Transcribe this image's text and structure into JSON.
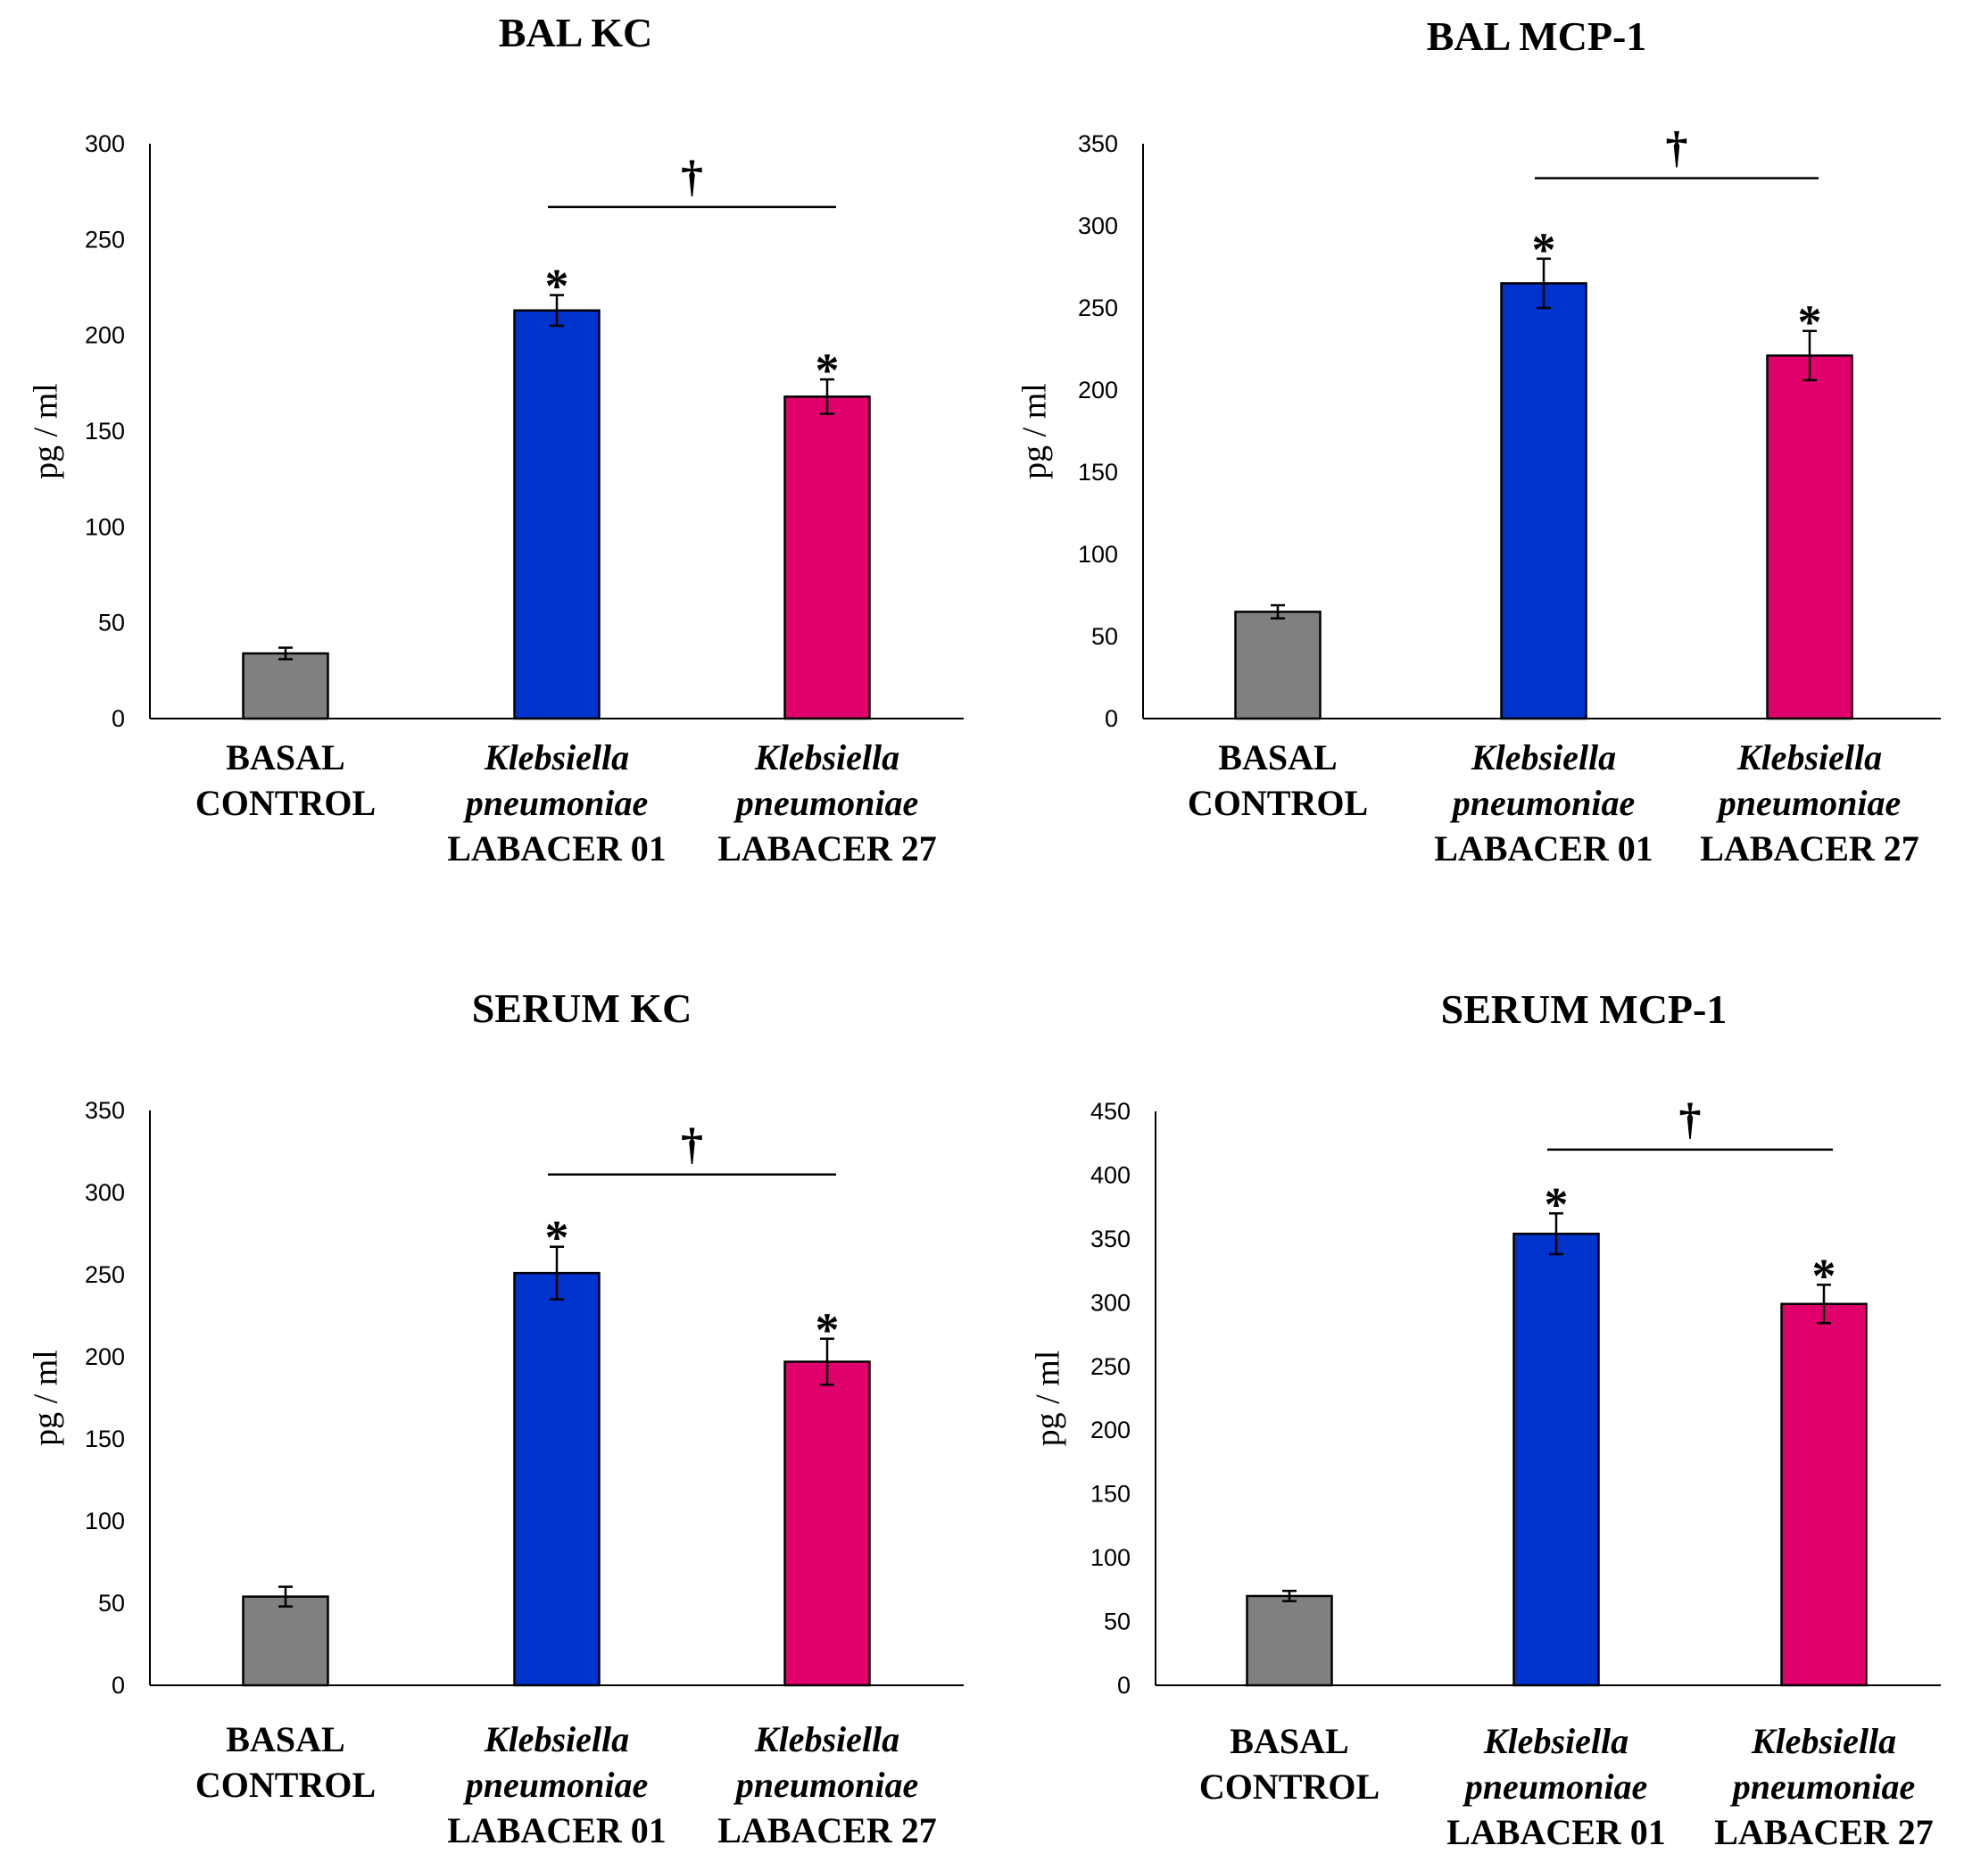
{
  "chart_data": [
    {
      "type": "bar",
      "title": "BAL KC",
      "ylabel": "pg / ml",
      "ylim": [
        0,
        300
      ],
      "yticks": [
        0,
        50,
        100,
        150,
        200,
        250,
        300
      ],
      "categories": [
        [
          "BASAL",
          "CONTROL"
        ],
        [
          "Klebsiella",
          "pneumoniae",
          "LABACER 01"
        ],
        [
          "Klebsiella",
          "pneumoniae",
          "LABACER 27"
        ]
      ],
      "values": [
        34,
        213,
        168
      ],
      "errors": [
        3,
        8,
        9
      ],
      "colors": [
        "#808080",
        "#0033CC",
        "#E0006B"
      ],
      "stars": [
        "",
        "*",
        "*"
      ],
      "dagger": "†",
      "bracket_level": 267
    },
    {
      "type": "bar",
      "title": "BAL MCP-1",
      "ylabel": "pg / ml",
      "ylim": [
        0,
        350
      ],
      "yticks": [
        0,
        50,
        100,
        150,
        200,
        250,
        300,
        350
      ],
      "categories": [
        [
          "BASAL",
          "CONTROL"
        ],
        [
          "Klebsiella",
          "pneumoniae",
          "LABACER 01"
        ],
        [
          "Klebsiella",
          "pneumoniae",
          "LABACER 27"
        ]
      ],
      "values": [
        65,
        265,
        221
      ],
      "errors": [
        4,
        15,
        15
      ],
      "colors": [
        "#808080",
        "#0033CC",
        "#E0006B"
      ],
      "stars": [
        "",
        "*",
        "*"
      ],
      "dagger": "†",
      "bracket_level": 329
    },
    {
      "type": "bar",
      "title": "SERUM KC",
      "ylabel": "pg / ml",
      "ylim": [
        0,
        350
      ],
      "yticks": [
        0,
        50,
        100,
        150,
        200,
        250,
        300,
        350
      ],
      "categories": [
        [
          "BASAL",
          "CONTROL"
        ],
        [
          "Klebsiella",
          "pneumoniae",
          "LABACER 01"
        ],
        [
          "Klebsiella",
          "pneumoniae",
          "LABACER 27"
        ]
      ],
      "values": [
        54,
        251,
        197
      ],
      "errors": [
        6,
        16,
        14
      ],
      "colors": [
        "#808080",
        "#0033CC",
        "#E0006B"
      ],
      "stars": [
        "",
        "*",
        "*"
      ],
      "dagger": "†",
      "bracket_level": 311
    },
    {
      "type": "bar",
      "title": "SERUM MCP-1",
      "ylabel": "pg / ml",
      "ylim": [
        0,
        450
      ],
      "yticks": [
        0,
        50,
        100,
        150,
        200,
        250,
        300,
        350,
        400,
        450
      ],
      "categories": [
        [
          "BASAL",
          "CONTROL"
        ],
        [
          "Klebsiella",
          "pneumoniae",
          "LABACER 01"
        ],
        [
          "Klebsiella",
          "pneumoniae",
          "LABACER 27"
        ]
      ],
      "values": [
        70,
        354,
        299
      ],
      "errors": [
        4,
        16,
        15
      ],
      "colors": [
        "#808080",
        "#0033CC",
        "#E0006B"
      ],
      "stars": [
        "",
        "*",
        "*"
      ],
      "dagger": "†",
      "bracket_level": 420
    }
  ]
}
